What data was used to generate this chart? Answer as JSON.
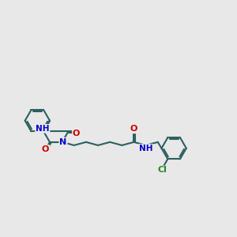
{
  "bg_color": "#e8e8e8",
  "bond_color": "#2d6060",
  "bond_width": 1.5,
  "atom_colors": {
    "N": "#0000cc",
    "O": "#cc0000",
    "Cl": "#228b22",
    "C": "#2d6060"
  },
  "fig_size": [
    3.0,
    3.0
  ],
  "dpi": 100,
  "xlim": [
    -0.5,
    10.5
  ],
  "ylim": [
    -2.0,
    2.8
  ]
}
